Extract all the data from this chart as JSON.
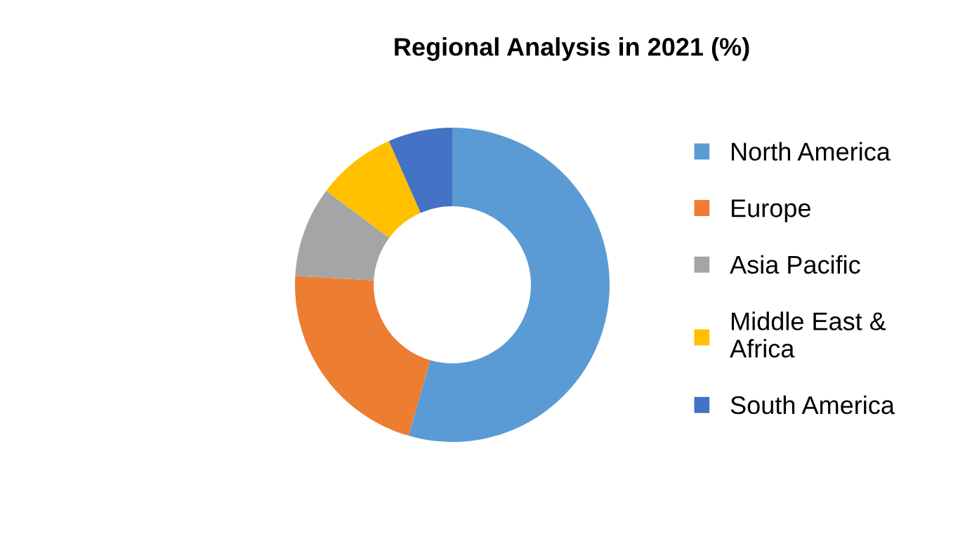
{
  "chart_data": {
    "type": "donut",
    "title": "Regional Analysis in 2021 (%)",
    "categories": [
      "North America",
      "Europe",
      "Asia Pacific",
      "Middle East &\nAfrica",
      "South America"
    ],
    "values": [
      54.5,
      21.4,
      9.3,
      8.2,
      6.6
    ],
    "colors": [
      "#5b9bd5",
      "#ed7d31",
      "#a5a5a5",
      "#ffc000",
      "#4472c4"
    ],
    "legend": "right"
  }
}
